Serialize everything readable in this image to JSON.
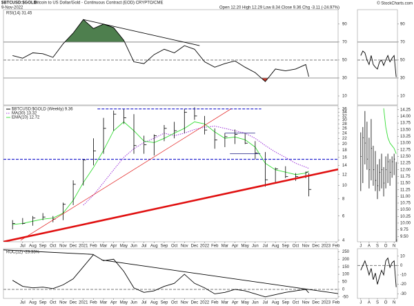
{
  "header": {
    "symbol": "$BTCUSD:$GOLD",
    "name": "Bitcoin to US Dollar/Gold - Continuous Contract (EOD) CRYPTO/CME",
    "date": "9-Nov-2022",
    "quote": "Open 12.20  High 12.29  Low 8.34  Close 9.36  Chg -3.11 (-24.97%)",
    "credit": "© StockCharts.com"
  },
  "chart_data": [
    {
      "type": "line",
      "xlim": [
        -0.9,
        32.2
      ],
      "ylim": [
        0,
        106
      ],
      "yticks": [
        10,
        30,
        50,
        70,
        90
      ],
      "x": [
        0,
        1,
        2,
        3,
        4,
        5,
        6,
        7,
        8,
        9,
        10,
        11,
        12,
        13,
        14,
        15,
        16,
        17,
        18,
        19,
        20,
        21,
        22,
        23,
        24,
        25,
        26,
        27,
        28,
        29,
        29.3
      ],
      "series": [
        {
          "name": "RSI(14) 31.45",
          "color": "#000000",
          "values": [
            55,
            52,
            58,
            57,
            53,
            68,
            80,
            95,
            85,
            90,
            86,
            72,
            48,
            46,
            56,
            62,
            58,
            66,
            62,
            48,
            42,
            46,
            49,
            42,
            36,
            26,
            40,
            38,
            40,
            45,
            31.45
          ]
        }
      ],
      "reference_lines": [
        {
          "value": 70,
          "style": "solid",
          "fill": "#4e7f4e",
          "side": "above"
        },
        {
          "value": 50,
          "style": "dashed"
        },
        {
          "value": 30,
          "style": "solid",
          "fill": "#c0392b",
          "side": "below"
        }
      ],
      "trendlines": [
        {
          "x": [
            7,
            18.5
          ],
          "y": [
            95,
            66
          ],
          "color": "#000000",
          "style": "solid"
        }
      ]
    },
    {
      "type": "ohlc",
      "name": "$BTCUSD:$GOLD (Weekly) 9.36",
      "color": "#000000",
      "log": true,
      "xlim": [
        -0.9,
        32.2
      ],
      "ylim": [
        3.9,
        38
      ],
      "yticks": [
        4,
        6,
        8,
        10,
        12,
        14,
        16,
        18,
        20,
        22,
        24,
        26,
        28,
        30,
        32,
        34,
        36
      ],
      "xticks": [
        {
          "value": 1,
          "label": "Jul"
        },
        {
          "value": 2,
          "label": "Aug"
        },
        {
          "value": 3,
          "label": "Sep"
        },
        {
          "value": 4,
          "label": "Oct"
        },
        {
          "value": 5,
          "label": "Nov"
        },
        {
          "value": 6,
          "label": "Dec"
        },
        {
          "value": 7,
          "label": "2021"
        },
        {
          "value": 8,
          "label": "Feb"
        },
        {
          "value": 9,
          "label": "Mar"
        },
        {
          "value": 10,
          "label": "Apr"
        },
        {
          "value": 11,
          "label": "May"
        },
        {
          "value": 12,
          "label": "Jun"
        },
        {
          "value": 13,
          "label": "Jul"
        },
        {
          "value": 14,
          "label": "Aug"
        },
        {
          "value": 15,
          "label": "Sep"
        },
        {
          "value": 16,
          "label": "Oct"
        },
        {
          "value": 17,
          "label": "Nov"
        },
        {
          "value": 18,
          "label": "Dec"
        },
        {
          "value": 19,
          "label": "2022"
        },
        {
          "value": 20,
          "label": "Feb"
        },
        {
          "value": 21,
          "label": "Mar"
        },
        {
          "value": 22,
          "label": "Apr"
        },
        {
          "value": 23,
          "label": "May"
        },
        {
          "value": 24,
          "label": "Jun"
        },
        {
          "value": 25,
          "label": "Jul"
        },
        {
          "value": 26,
          "label": "Aug"
        },
        {
          "value": 27,
          "label": "Sep"
        },
        {
          "value": 28,
          "label": "Oct"
        },
        {
          "value": 29,
          "label": "Nov"
        },
        {
          "value": 30,
          "label": "Dec"
        },
        {
          "value": 31,
          "label": "2023"
        },
        {
          "value": 32,
          "label": "Feb"
        }
      ],
      "x": [
        0,
        1,
        2,
        3,
        4,
        5,
        6,
        7,
        8,
        9,
        10,
        11,
        12,
        13,
        14,
        15,
        16,
        17,
        18,
        19,
        20,
        21,
        22,
        23,
        24,
        25,
        26,
        27,
        28,
        29,
        29.3
      ],
      "high": [
        5.6,
        5.8,
        6.0,
        6.3,
        6.0,
        7.5,
        10.9,
        15.5,
        22,
        31,
        35,
        36,
        33,
        23,
        23.5,
        27.5,
        29,
        36,
        37,
        32,
        26,
        24,
        25.5,
        24,
        21,
        17.5,
        13.5,
        13.8,
        12.3,
        12.6,
        12.29
      ],
      "low": [
        4.8,
        5.2,
        5.1,
        5.6,
        5.4,
        5.6,
        7.2,
        10,
        14,
        17,
        25,
        28,
        17,
        17,
        16.5,
        21,
        22,
        24,
        30,
        23.5,
        18.5,
        19,
        20,
        20,
        15.5,
        9.8,
        10.5,
        11.3,
        10.8,
        11.3,
        8.34
      ],
      "close": [
        5.3,
        5.3,
        5.8,
        5.9,
        5.7,
        7.3,
        10.2,
        15.3,
        17.8,
        26,
        33,
        31,
        19.5,
        19.8,
        23,
        26,
        25,
        34,
        32,
        25.3,
        21.4,
        22.6,
        23.5,
        20.3,
        17.2,
        11,
        13.2,
        11.6,
        11.6,
        12.5,
        9.36
      ],
      "overlays": [
        {
          "name": "MA(30) 13.32",
          "color": "#9b30d9",
          "style": "dotted",
          "values": [
            null,
            null,
            null,
            null,
            null,
            null,
            null,
            7.2,
            8.5,
            10.5,
            13,
            16,
            18.5,
            20.5,
            22,
            24,
            23,
            24,
            25.5,
            26.5,
            27,
            26,
            25,
            24,
            22,
            19.5,
            17.5,
            16,
            14.5,
            13.6,
            13.32
          ]
        },
        {
          "name": "EMA(10) 12.72",
          "color": "#33dd33",
          "style": "solid",
          "values": [
            5.2,
            5.3,
            5.5,
            5.7,
            5.8,
            6.3,
            7.8,
            10.5,
            13.5,
            18,
            25,
            29,
            25,
            21,
            20.5,
            22,
            24,
            26,
            29,
            28,
            24.5,
            22,
            22.5,
            21.5,
            19,
            14.5,
            13,
            12.5,
            12,
            12.3,
            12.72
          ]
        }
      ],
      "trendlines": [
        {
          "x": [
            8.4,
            24.6
          ],
          "y": [
            36,
            36
          ],
          "color": "#1a1acc",
          "style": "dashed"
        },
        {
          "x": [
            -0.9,
            32.2
          ],
          "y": [
            15.5,
            15.5
          ],
          "color": "#1a1acc",
          "style": "dashed"
        },
        {
          "x": [
            21,
            24
          ],
          "y": [
            24,
            24
          ],
          "color": "#1a1a80",
          "style": "thin"
        },
        {
          "x": [
            21.5,
            24.5
          ],
          "y": [
            17,
            17
          ],
          "color": "#1a1a80",
          "style": "thin"
        },
        {
          "x": [
            -0.9,
            32.2
          ],
          "y": [
            3.9,
            13.1
          ],
          "color": "#e01010",
          "style": "thick"
        },
        {
          "x": [
            0.8,
            21.6
          ],
          "y": [
            4,
            36
          ],
          "color": "#e01010",
          "style": "thin"
        }
      ]
    },
    {
      "type": "line",
      "xlim": [
        -0.9,
        32.2
      ],
      "ylim": [
        -60,
        270
      ],
      "yticks": [
        -50,
        0,
        50,
        100,
        150,
        200,
        250
      ],
      "xticks": [
        {
          "value": 1,
          "label": "Jul"
        },
        {
          "value": 2,
          "label": "Aug"
        },
        {
          "value": 3,
          "label": "Sep"
        },
        {
          "value": 4,
          "label": "Oct"
        },
        {
          "value": 5,
          "label": "Nov"
        },
        {
          "value": 6,
          "label": "Dec"
        },
        {
          "value": 7,
          "label": "2021"
        },
        {
          "value": 8,
          "label": "Feb"
        },
        {
          "value": 9,
          "label": "Mar"
        },
        {
          "value": 10,
          "label": "Apr"
        },
        {
          "value": 11,
          "label": "May"
        },
        {
          "value": 12,
          "label": "Jun"
        },
        {
          "value": 13,
          "label": "Jul"
        },
        {
          "value": 14,
          "label": "Aug"
        },
        {
          "value": 15,
          "label": "Sep"
        },
        {
          "value": 16,
          "label": "Oct"
        },
        {
          "value": 17,
          "label": "Nov"
        },
        {
          "value": 18,
          "label": "Dec"
        },
        {
          "value": 19,
          "label": "2022"
        },
        {
          "value": 20,
          "label": "Feb"
        },
        {
          "value": 21,
          "label": "Mar"
        },
        {
          "value": 22,
          "label": "Apr"
        },
        {
          "value": 23,
          "label": "May"
        },
        {
          "value": 24,
          "label": "Jun"
        },
        {
          "value": 25,
          "label": "Jul"
        },
        {
          "value": 26,
          "label": "Aug"
        },
        {
          "value": 27,
          "label": "Sep"
        },
        {
          "value": 28,
          "label": "Oct"
        },
        {
          "value": 29,
          "label": "Nov"
        },
        {
          "value": 30,
          "label": "Dec"
        },
        {
          "value": 31,
          "label": "2023"
        },
        {
          "value": 32,
          "label": "Feb"
        }
      ],
      "x": [
        0,
        1,
        2,
        3,
        4,
        5,
        6,
        7,
        8,
        9,
        10,
        11,
        12,
        13,
        14,
        15,
        16,
        17,
        18,
        19,
        20,
        21,
        22,
        23,
        24,
        25,
        26,
        27,
        28,
        29,
        29.3
      ],
      "series": [
        {
          "name": "ROC(12) -23.33%",
          "color": "#000000",
          "values": [
            60,
            20,
            10,
            15,
            5,
            30,
            70,
            150,
            230,
            190,
            200,
            120,
            10,
            -20,
            -10,
            20,
            40,
            100,
            40,
            10,
            -30,
            -20,
            0,
            -10,
            -30,
            -50,
            -35,
            -20,
            -10,
            0,
            -23.33
          ]
        }
      ],
      "reference_lines": [
        {
          "value": 0,
          "style": "dashed"
        }
      ],
      "trendlines": [
        {
          "x": [
            -0.9,
            8
          ],
          "y": [
            262,
            232
          ],
          "color": "#000000",
          "style": "solid"
        },
        {
          "x": [
            8.8,
            32.2
          ],
          "y": [
            195,
            -28
          ],
          "color": "#000000",
          "style": "solid"
        }
      ]
    },
    {
      "type": "ohlc",
      "color": "#000000",
      "xlim": [
        -0.4,
        4.4
      ],
      "ylim": [
        9.3,
        14.4
      ],
      "yticks": [
        14.25,
        {
          "value": 14,
          "label": "14.00"
        },
        13.75,
        {
          "value": 13.5,
          "label": "13.50"
        },
        13.25,
        {
          "value": 13,
          "label": "13.00"
        },
        12.75,
        {
          "value": 12.5,
          "label": "12.50"
        },
        12.25,
        {
          "value": 12,
          "label": "12.00"
        },
        11.75,
        {
          "value": 11.5,
          "label": "11.50"
        },
        11.25,
        {
          "value": 11,
          "label": "11.00"
        },
        10.75,
        {
          "value": 10.5,
          "label": "10.50"
        },
        10.25,
        {
          "value": 10,
          "label": "10.00"
        },
        9.75,
        {
          "value": 9.5,
          "label": "9.50"
        }
      ],
      "xticks": [
        {
          "value": 0,
          "label": "J"
        },
        {
          "value": 1,
          "label": "A"
        },
        {
          "value": 2,
          "label": "S"
        },
        {
          "value": 3,
          "label": "O"
        },
        {
          "value": 4,
          "label": "N"
        }
      ],
      "x": [
        0,
        0.25,
        0.5,
        0.75,
        1,
        1.25,
        1.5,
        1.75,
        2,
        2.25,
        2.5,
        2.75,
        3,
        3.25,
        3.5,
        3.75,
        4,
        4.25
      ],
      "high": [
        13.4,
        13.6,
        14.2,
        13.8,
        13.2,
        13.9,
        12.9,
        12.7,
        12.2,
        12.4,
        12.6,
        12.1,
        12.5,
        12.6,
        12.4,
        12.5,
        12.6,
        12.29
      ],
      "low": [
        11.2,
        11.5,
        12.2,
        12.0,
        11.3,
        11.6,
        11.4,
        11.2,
        10.9,
        11.2,
        11.3,
        11.0,
        11.3,
        11.5,
        11.4,
        11.7,
        11.8,
        8.34
      ],
      "close": [
        12.5,
        13.2,
        13.0,
        12.4,
        12.0,
        12.8,
        12.0,
        11.6,
        11.4,
        11.9,
        12.0,
        11.5,
        12.0,
        12.3,
        11.9,
        12.3,
        12.4,
        9.36
      ],
      "overlays": [
        {
          "color": "#33dd33",
          "style": "solid",
          "values": [
            null,
            null,
            null,
            null,
            null,
            null,
            null,
            null,
            null,
            null,
            null,
            14.3,
            13.6,
            13.2,
            13.0,
            12.9,
            12.8,
            12.6
          ]
        }
      ]
    },
    {
      "type": "line",
      "xlim": [
        -0.4,
        4.4
      ],
      "ylim": [
        0,
        106
      ],
      "yticks": [
        10,
        30,
        50,
        70,
        90
      ],
      "x": [
        0,
        0.25,
        0.5,
        0.75,
        1,
        1.25,
        1.5,
        1.75,
        2,
        2.25,
        2.5,
        2.75,
        3,
        3.25,
        3.5,
        3.75,
        4,
        4.25
      ],
      "series": [
        {
          "color": "#000000",
          "values": [
            55,
            60,
            58,
            50,
            45,
            55,
            45,
            42,
            40,
            48,
            50,
            44,
            50,
            55,
            48,
            52,
            55,
            31
          ]
        }
      ],
      "reference_lines": [
        {
          "value": 70,
          "style": "solid"
        },
        {
          "value": 50,
          "style": "dashed"
        },
        {
          "value": 30,
          "style": "solid"
        }
      ]
    },
    {
      "type": "line",
      "xlim": [
        -0.4,
        4.4
      ],
      "ylim": [
        -35,
        18
      ],
      "yticks": [
        -30,
        -20,
        -10,
        0,
        10
      ],
      "xticks": [
        {
          "value": 0,
          "label": "J"
        },
        {
          "value": 1,
          "label": "A"
        },
        {
          "value": 2,
          "label": "S"
        },
        {
          "value": 3,
          "label": "O"
        },
        {
          "value": 4,
          "label": "N"
        }
      ],
      "x": [
        0,
        0.25,
        0.5,
        0.75,
        1,
        1.25,
        1.5,
        1.75,
        2,
        2.25,
        2.5,
        2.75,
        3,
        3.25,
        3.5,
        3.75,
        4,
        4.25
      ],
      "series": [
        {
          "color": "#000000",
          "values": [
            -5,
            0,
            5,
            -2,
            -10,
            -3,
            -15,
            -8,
            -20,
            -12,
            -5,
            -10,
            5,
            8,
            -2,
            3,
            5,
            -23
          ]
        }
      ],
      "reference_lines": [
        {
          "value": 0,
          "style": "dashed"
        }
      ]
    }
  ]
}
